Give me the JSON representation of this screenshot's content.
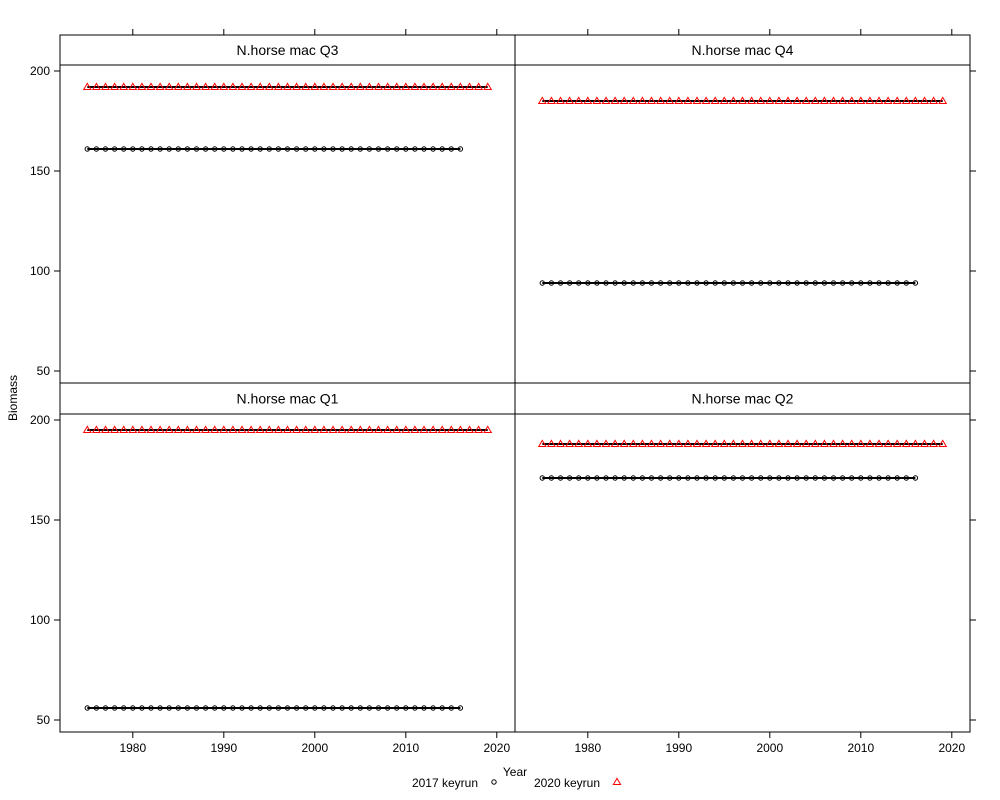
{
  "chart_data": {
    "type": "scatter",
    "xlabel": "Year",
    "ylabel": "Biomass",
    "xlim": [
      1972,
      2022
    ],
    "ylim_top_row": [
      44,
      203
    ],
    "ylim_bottom_row": [
      44,
      203
    ],
    "x_ticks": [
      1980,
      1990,
      2000,
      2010,
      2020
    ],
    "y_ticks": [
      50,
      100,
      150,
      200
    ],
    "grid": false,
    "legend_position": "bottom",
    "legend": [
      {
        "label": "2017 keyrun",
        "marker": "circle",
        "color": "#000000"
      },
      {
        "label": "2020 keyrun",
        "marker": "triangle",
        "color": "#ff0000"
      }
    ],
    "panels": [
      {
        "title": "N.horse mac Q3",
        "series": [
          {
            "name": "2017 keyrun",
            "x_start": 1975,
            "x_end": 2016,
            "value": 161
          },
          {
            "name": "2020 keyrun",
            "x_start": 1975,
            "x_end": 2019,
            "value": 192
          }
        ]
      },
      {
        "title": "N.horse mac Q4",
        "series": [
          {
            "name": "2017 keyrun",
            "x_start": 1975,
            "x_end": 2016,
            "value": 94
          },
          {
            "name": "2020 keyrun",
            "x_start": 1975,
            "x_end": 2019,
            "value": 185
          }
        ]
      },
      {
        "title": "N.horse mac Q1",
        "series": [
          {
            "name": "2017 keyrun",
            "x_start": 1975,
            "x_end": 2016,
            "value": 56
          },
          {
            "name": "2020 keyrun",
            "x_start": 1975,
            "x_end": 2019,
            "value": 195
          }
        ]
      },
      {
        "title": "N.horse mac Q2",
        "series": [
          {
            "name": "2017 keyrun",
            "x_start": 1975,
            "x_end": 2016,
            "value": 171
          },
          {
            "name": "2020 keyrun",
            "x_start": 1975,
            "x_end": 2019,
            "value": 188
          }
        ]
      }
    ]
  }
}
